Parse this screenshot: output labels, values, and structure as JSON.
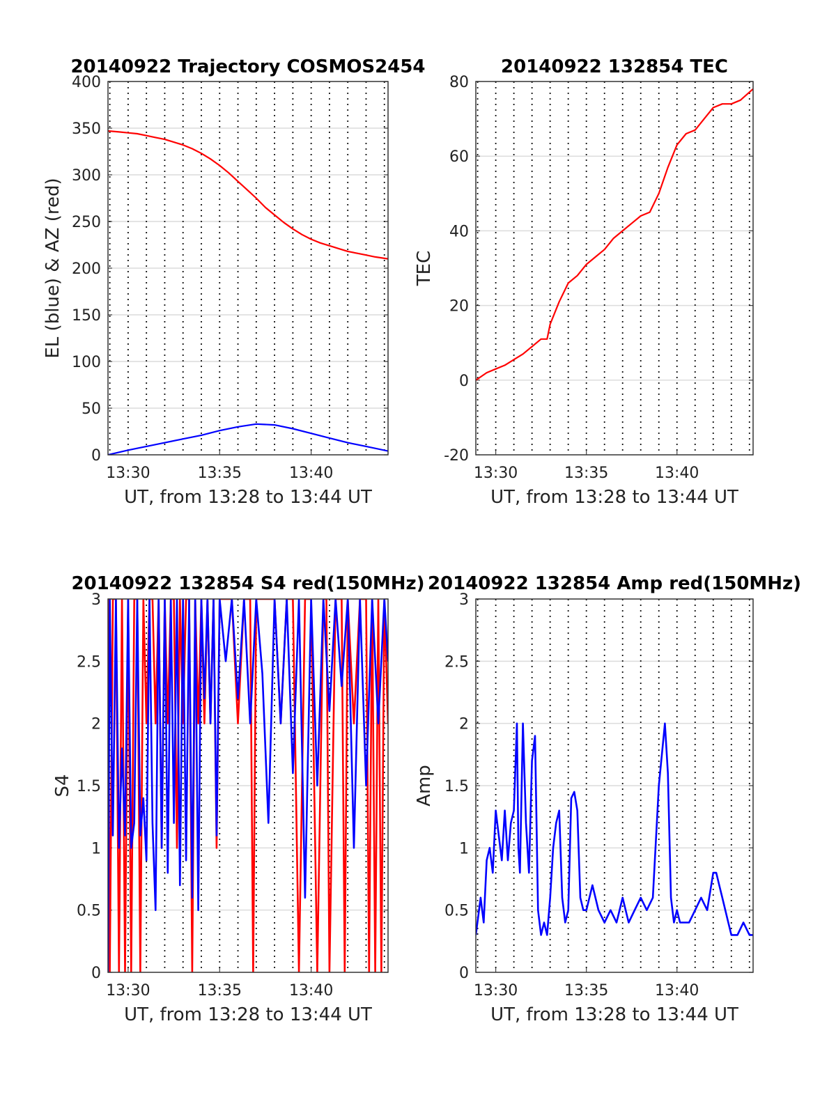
{
  "chart_data": [
    {
      "id": "traj",
      "type": "line",
      "title": "20140922 Trajectory COSMOS2454",
      "xlabel": "UT, from 13:28 to 13:44 UT",
      "ylabel": "EL (blue) & AZ (red)",
      "xlim": [
        "13:28:54",
        "13:44:12"
      ],
      "ylim": [
        0,
        400
      ],
      "yticks": [
        0,
        50,
        100,
        150,
        200,
        250,
        300,
        350,
        400
      ],
      "xticks": [
        "13:30",
        "13:35",
        "13:40"
      ],
      "minute_gridlines": [
        "13:29",
        "13:30",
        "13:31",
        "13:32",
        "13:33",
        "13:34",
        "13:35",
        "13:36",
        "13:37",
        "13:38",
        "13:39",
        "13:40",
        "13:41",
        "13:42",
        "13:43",
        "13:44"
      ],
      "grid": true,
      "series": [
        {
          "color": "#ff0000",
          "x": [
            "13:28:54",
            "13:29:30",
            "13:30:00",
            "13:30:30",
            "13:31:00",
            "13:31:30",
            "13:32:00",
            "13:32:30",
            "13:33:00",
            "13:33:30",
            "13:34:00",
            "13:34:30",
            "13:35:00",
            "13:35:30",
            "13:36:00",
            "13:36:30",
            "13:37:00",
            "13:37:30",
            "13:38:00",
            "13:38:30",
            "13:39:00",
            "13:39:30",
            "13:40:00",
            "13:40:30",
            "13:41:00",
            "13:41:30",
            "13:42:00",
            "13:42:30",
            "13:43:00",
            "13:43:30",
            "13:44:12"
          ],
          "values": [
            347,
            346,
            345,
            344,
            342,
            340,
            338,
            335,
            332,
            328,
            323,
            317,
            310,
            302,
            293,
            284,
            275,
            265,
            257,
            249,
            242,
            236,
            231,
            227,
            224,
            221,
            218,
            216,
            214,
            212,
            210
          ]
        },
        {
          "color": "#0000ff",
          "x": [
            "13:28:54",
            "13:30:00",
            "13:31:00",
            "13:32:00",
            "13:33:00",
            "13:34:00",
            "13:35:00",
            "13:36:00",
            "13:37:00",
            "13:38:00",
            "13:39:00",
            "13:40:00",
            "13:41:00",
            "13:42:00",
            "13:43:00",
            "13:44:12"
          ],
          "values": [
            0,
            5,
            9,
            13,
            17,
            21,
            26,
            30,
            33,
            32,
            28,
            23,
            18,
            13,
            9,
            4
          ]
        }
      ]
    },
    {
      "id": "tec",
      "type": "line",
      "title": "20140922 132854 TEC",
      "xlabel": "UT, from 13:28 to 13:44 UT",
      "ylabel": "TEC",
      "xlim": [
        "13:28:54",
        "13:44:12"
      ],
      "ylim": [
        -20,
        80
      ],
      "yticks": [
        -20,
        0,
        20,
        40,
        60,
        80
      ],
      "xticks": [
        "13:30",
        "13:35",
        "13:40"
      ],
      "minute_gridlines": [
        "13:29",
        "13:30",
        "13:31",
        "13:32",
        "13:33",
        "13:34",
        "13:35",
        "13:36",
        "13:37",
        "13:38",
        "13:39",
        "13:40",
        "13:41",
        "13:42",
        "13:43",
        "13:44"
      ],
      "grid": true,
      "series": [
        {
          "color": "#ff0000",
          "x": [
            "13:28:54",
            "13:29:30",
            "13:30:00",
            "13:30:30",
            "13:31:00",
            "13:31:30",
            "13:32:00",
            "13:32:30",
            "13:32:50",
            "13:33:00",
            "13:33:30",
            "13:34:00",
            "13:34:30",
            "13:35:00",
            "13:35:30",
            "13:36:00",
            "13:36:30",
            "13:37:00",
            "13:37:30",
            "13:38:00",
            "13:38:30",
            "13:39:00",
            "13:39:30",
            "13:40:00",
            "13:40:30",
            "13:41:00",
            "13:41:30",
            "13:42:00",
            "13:42:30",
            "13:43:00",
            "13:43:30",
            "13:44:12"
          ],
          "values": [
            0,
            2,
            3,
            4,
            5.5,
            7,
            9,
            11,
            11,
            15,
            21,
            26,
            28,
            31,
            33,
            35,
            38,
            40,
            42,
            44,
            45,
            50,
            57,
            63,
            66,
            67,
            70,
            73,
            74,
            74,
            75,
            78
          ]
        }
      ]
    },
    {
      "id": "s4",
      "type": "line",
      "title": "20140922 132854 S4 red(150MHz)",
      "xlabel": "UT, from 13:28 to 13:44 UT",
      "ylabel": "S4",
      "xlim": [
        "13:28:54",
        "13:44:12"
      ],
      "ylim": [
        0,
        3
      ],
      "yticks": [
        0,
        0.5,
        1,
        1.5,
        2,
        2.5,
        3
      ],
      "xticks": [
        "13:30",
        "13:35",
        "13:40"
      ],
      "minute_gridlines": [
        "13:29",
        "13:30",
        "13:31",
        "13:32",
        "13:33",
        "13:34",
        "13:35",
        "13:36",
        "13:37",
        "13:38",
        "13:39",
        "13:40",
        "13:41",
        "13:42",
        "13:43",
        "13:44"
      ],
      "grid": true,
      "series": [
        {
          "color": "#ff0000",
          "x": [
            "13:28:54",
            "13:29:00",
            "13:29:10",
            "13:29:20",
            "13:29:30",
            "13:29:40",
            "13:29:50",
            "13:30:00",
            "13:30:10",
            "13:30:20",
            "13:30:30",
            "13:30:40",
            "13:30:50",
            "13:31:00",
            "13:31:10",
            "13:31:20",
            "13:31:30",
            "13:31:40",
            "13:31:50",
            "13:32:00",
            "13:32:10",
            "13:32:20",
            "13:32:30",
            "13:32:40",
            "13:32:50",
            "13:33:00",
            "13:33:10",
            "13:33:20",
            "13:33:30",
            "13:33:40",
            "13:33:50",
            "13:34:00",
            "13:34:10",
            "13:34:20",
            "13:34:30",
            "13:34:40",
            "13:34:50",
            "13:35:00",
            "13:35:20",
            "13:35:40",
            "13:36:00",
            "13:36:20",
            "13:36:40",
            "13:36:50",
            "13:37:00",
            "13:37:20",
            "13:37:40",
            "13:38:00",
            "13:38:20",
            "13:38:40",
            "13:39:00",
            "13:39:20",
            "13:39:40",
            "13:40:00",
            "13:40:20",
            "13:40:40",
            "13:40:50",
            "13:41:00",
            "13:41:20",
            "13:41:40",
            "13:41:50",
            "13:42:00",
            "13:42:20",
            "13:42:40",
            "13:43:00",
            "13:43:10",
            "13:43:20",
            "13:43:30",
            "13:43:40",
            "13:43:50",
            "13:44:00",
            "13:44:12"
          ],
          "values": [
            3,
            0,
            3,
            3,
            0,
            3,
            0,
            3,
            0,
            3,
            3,
            0,
            3,
            2,
            3,
            3,
            2,
            3,
            1,
            3,
            2,
            3,
            3,
            1,
            3,
            2,
            3,
            3,
            0,
            3,
            2,
            3,
            2,
            3,
            2,
            3,
            1,
            3,
            3,
            3,
            2,
            3,
            3,
            0,
            3,
            3,
            3,
            3,
            2,
            3,
            3,
            0,
            3,
            3,
            0,
            3,
            3,
            0,
            3,
            3,
            0,
            3,
            2,
            3,
            3,
            0,
            3,
            0,
            3,
            0,
            3,
            2
          ]
        },
        {
          "color": "#0000ff",
          "x": [
            "13:28:54",
            "13:29:00",
            "13:29:10",
            "13:29:20",
            "13:29:30",
            "13:29:40",
            "13:29:50",
            "13:30:00",
            "13:30:10",
            "13:30:20",
            "13:30:30",
            "13:30:40",
            "13:30:50",
            "13:31:00",
            "13:31:10",
            "13:31:20",
            "13:31:30",
            "13:31:40",
            "13:31:50",
            "13:32:00",
            "13:32:10",
            "13:32:20",
            "13:32:30",
            "13:32:40",
            "13:32:50",
            "13:33:00",
            "13:33:10",
            "13:33:20",
            "13:33:30",
            "13:33:40",
            "13:33:50",
            "13:34:00",
            "13:34:10",
            "13:34:20",
            "13:34:30",
            "13:34:40",
            "13:34:50",
            "13:35:00",
            "13:35:20",
            "13:35:40",
            "13:36:00",
            "13:36:20",
            "13:36:40",
            "13:37:00",
            "13:37:20",
            "13:37:40",
            "13:38:00",
            "13:38:20",
            "13:38:40",
            "13:39:00",
            "13:39:20",
            "13:39:40",
            "13:40:00",
            "13:40:20",
            "13:40:40",
            "13:41:00",
            "13:41:20",
            "13:41:40",
            "13:42:00",
            "13:42:20",
            "13:42:40",
            "13:43:00",
            "13:43:20",
            "13:43:40",
            "13:44:00",
            "13:44:12"
          ],
          "values": [
            0,
            3,
            1.1,
            3,
            1.0,
            1.8,
            1.1,
            3,
            1.0,
            1.2,
            3,
            1.1,
            1.4,
            0.9,
            3,
            1.2,
            0.5,
            3,
            1.0,
            3,
            0.8,
            3,
            1.2,
            3,
            0.7,
            3,
            0.9,
            3,
            0.6,
            3,
            0.5,
            3,
            2.2,
            3,
            2.0,
            3,
            1.1,
            3,
            2.5,
            3,
            2.2,
            3,
            2.0,
            3,
            2.4,
            1.2,
            3,
            2.0,
            3,
            1.6,
            3,
            0.6,
            3,
            1.5,
            3,
            2.1,
            3,
            2.3,
            3,
            1.0,
            3,
            1.5,
            3,
            2.0,
            3,
            2.5
          ]
        }
      ]
    },
    {
      "id": "amp",
      "type": "line",
      "title": "20140922 132854 Amp red(150MHz)",
      "xlabel": "UT, from 13:28 to 13:44 UT",
      "ylabel": "Amp",
      "xlim": [
        "13:28:54",
        "13:44:12"
      ],
      "ylim": [
        0,
        3
      ],
      "yticks": [
        0,
        0.5,
        1,
        1.5,
        2,
        2.5,
        3
      ],
      "xticks": [
        "13:30",
        "13:35",
        "13:40"
      ],
      "minute_gridlines": [
        "13:29",
        "13:30",
        "13:31",
        "13:32",
        "13:33",
        "13:34",
        "13:35",
        "13:36",
        "13:37",
        "13:38",
        "13:39",
        "13:40",
        "13:41",
        "13:42",
        "13:43",
        "13:44"
      ],
      "grid": true,
      "series": [
        {
          "color": "#0000ff",
          "x": [
            "13:28:54",
            "13:29:10",
            "13:29:20",
            "13:29:30",
            "13:29:40",
            "13:29:50",
            "13:30:00",
            "13:30:10",
            "13:30:20",
            "13:30:30",
            "13:30:40",
            "13:30:50",
            "13:31:00",
            "13:31:10",
            "13:31:15",
            "13:31:20",
            "13:31:30",
            "13:31:40",
            "13:31:50",
            "13:32:00",
            "13:32:10",
            "13:32:20",
            "13:32:30",
            "13:32:40",
            "13:32:50",
            "13:33:00",
            "13:33:10",
            "13:33:20",
            "13:33:30",
            "13:33:40",
            "13:33:50",
            "13:34:00",
            "13:34:10",
            "13:34:20",
            "13:34:30",
            "13:34:40",
            "13:34:50",
            "13:35:00",
            "13:35:20",
            "13:35:40",
            "13:36:00",
            "13:36:20",
            "13:36:40",
            "13:37:00",
            "13:37:20",
            "13:37:40",
            "13:38:00",
            "13:38:20",
            "13:38:40",
            "13:39:00",
            "13:39:20",
            "13:39:30",
            "13:39:40",
            "13:39:50",
            "13:40:00",
            "13:40:10",
            "13:40:20",
            "13:40:40",
            "13:41:00",
            "13:41:20",
            "13:41:40",
            "13:42:00",
            "13:42:10",
            "13:42:20",
            "13:42:30",
            "13:42:40",
            "13:42:50",
            "13:43:00",
            "13:43:20",
            "13:43:40",
            "13:44:00",
            "13:44:12"
          ],
          "values": [
            0.3,
            0.6,
            0.4,
            0.9,
            1.0,
            0.8,
            1.3,
            1.1,
            0.9,
            1.3,
            0.9,
            1.2,
            1.3,
            2.0,
            1.0,
            0.8,
            2.0,
            1.2,
            0.8,
            1.7,
            1.9,
            0.5,
            0.3,
            0.4,
            0.3,
            0.6,
            1.0,
            1.2,
            1.3,
            0.6,
            0.4,
            0.5,
            1.4,
            1.45,
            1.3,
            0.6,
            0.5,
            0.5,
            0.7,
            0.5,
            0.4,
            0.5,
            0.4,
            0.6,
            0.4,
            0.5,
            0.6,
            0.5,
            0.6,
            1.5,
            2.0,
            1.6,
            0.6,
            0.4,
            0.5,
            0.4,
            0.4,
            0.4,
            0.5,
            0.6,
            0.5,
            0.8,
            0.8,
            0.7,
            0.6,
            0.5,
            0.4,
            0.3,
            0.3,
            0.4,
            0.3,
            0.3
          ]
        }
      ]
    }
  ]
}
